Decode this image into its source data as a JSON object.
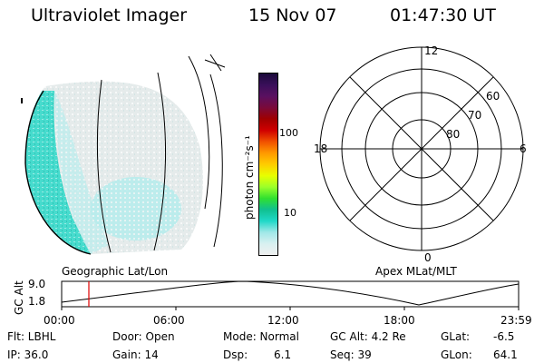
{
  "header": {
    "title": "Ultraviolet Imager",
    "date": "15 Nov 07",
    "time": "01:47:30 UT"
  },
  "colorbar": {
    "unit_label": "photon cm⁻²s⁻¹",
    "ticks": [
      "100",
      "10"
    ],
    "colors": [
      "#1a0a3a",
      "#3a0f5a",
      "#5a1060",
      "#7a0a3a",
      "#a00000",
      "#d00000",
      "#f05000",
      "#ff9900",
      "#ffcc00",
      "#e8ff00",
      "#9cff2a",
      "#30e030",
      "#10c090",
      "#20d8c8",
      "#a0e8e8",
      "#d8f0f0",
      "#f0f0f0"
    ]
  },
  "polar_grid": {
    "lat_labels": [
      "60",
      "70",
      "80"
    ],
    "mlt_labels": {
      "top": "12",
      "left": "18",
      "right": "6",
      "bottom": "0"
    }
  },
  "timeline": {
    "y_axis_title": "GC Alt",
    "y_ticks": [
      "9.0",
      "1.8"
    ],
    "left_title": "Geographic Lat/Lon",
    "right_title": "Apex MLat/MLT",
    "x_ticks": [
      "00:00",
      "06:00",
      "12:00",
      "18:00",
      "23:59"
    ],
    "current_marker_color": "#e00000"
  },
  "info": {
    "flt": "Flt: LBHL",
    "ip": "IP: 36.0",
    "door": "Door: Open",
    "gain": "Gain: 14",
    "mode": "Mode: Normal",
    "dsp_label": "Dsp:",
    "dsp_value": "6.1",
    "gc_alt": "GC Alt: 4.2 Re",
    "seq": "Seq: 39",
    "glat_label": "GLat:",
    "glat_value": "-6.5",
    "glon_label": "GLon:",
    "glon_value": "64.1"
  }
}
